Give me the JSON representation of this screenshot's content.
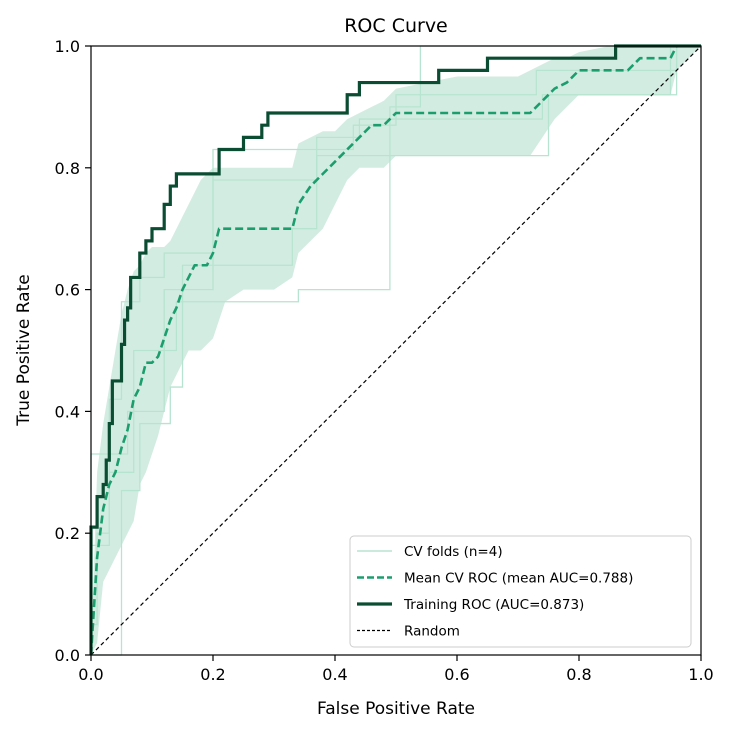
{
  "chart_data": {
    "type": "line",
    "title": "ROC Curve",
    "xlabel": "False Positive Rate",
    "ylabel": "True Positive Rate",
    "xlim": [
      0.0,
      1.0
    ],
    "ylim": [
      0.0,
      1.0
    ],
    "xticks": [
      "0.0",
      "0.2",
      "0.4",
      "0.6",
      "0.8",
      "1.0"
    ],
    "yticks": [
      "0.0",
      "0.2",
      "0.4",
      "0.6",
      "0.8",
      "1.0"
    ],
    "grid": false,
    "legend_position": "lower-right",
    "colors": {
      "folds": "#b7e4d0",
      "band": "#d3ece2",
      "mean": "#1b9e6e",
      "training": "#0b4d33",
      "random": "#000000"
    },
    "series": [
      {
        "name": "CV folds (n=4)",
        "style": "thin",
        "folds": [
          {
            "x": [
              0.0,
              0.0,
              0.01,
              0.01,
              0.03,
              0.03,
              0.05,
              0.05,
              0.08,
              0.08,
              0.12,
              0.12,
              0.2,
              0.2,
              0.34,
              0.34,
              0.43,
              0.43,
              0.5,
              0.5,
              0.73,
              0.73,
              0.96,
              0.96,
              1.0
            ],
            "y": [
              0.0,
              0.05,
              0.05,
              0.2,
              0.2,
              0.42,
              0.42,
              0.58,
              0.58,
              0.62,
              0.62,
              0.66,
              0.66,
              0.83,
              0.83,
              0.83,
              0.83,
              0.87,
              0.87,
              0.92,
              0.92,
              0.96,
              0.96,
              1.0,
              1.0
            ]
          },
          {
            "x": [
              0.0,
              0.05,
              0.05,
              0.08,
              0.08,
              0.13,
              0.13,
              0.15,
              0.15,
              0.2,
              0.2,
              0.34,
              0.34,
              0.37,
              0.37,
              0.44,
              0.44,
              0.74,
              0.74,
              0.95,
              0.95,
              1.0
            ],
            "y": [
              0.0,
              0.0,
              0.27,
              0.27,
              0.38,
              0.38,
              0.44,
              0.44,
              0.6,
              0.6,
              0.78,
              0.78,
              0.78,
              0.78,
              0.85,
              0.85,
              0.88,
              0.88,
              0.92,
              0.92,
              1.0,
              1.0
            ]
          },
          {
            "x": [
              0.0,
              0.0,
              0.03,
              0.03,
              0.07,
              0.07,
              0.12,
              0.12,
              0.15,
              0.15,
              0.2,
              0.2,
              0.33,
              0.33,
              0.37,
              0.37,
              0.53,
              0.53,
              0.75,
              0.75,
              0.96,
              0.96,
              1.0
            ],
            "y": [
              0.0,
              0.18,
              0.18,
              0.3,
              0.3,
              0.5,
              0.5,
              0.6,
              0.6,
              0.64,
              0.64,
              0.64,
              0.64,
              0.7,
              0.7,
              0.82,
              0.82,
              0.82,
              0.82,
              0.92,
              0.92,
              1.0,
              1.0
            ]
          },
          {
            "x": [
              0.0,
              0.0,
              0.02,
              0.02,
              0.06,
              0.06,
              0.12,
              0.12,
              0.14,
              0.14,
              0.2,
              0.2,
              0.34,
              0.34,
              0.49,
              0.49,
              0.54,
              0.54,
              0.55,
              0.55,
              0.73,
              0.73,
              0.96,
              0.96,
              1.0
            ],
            "y": [
              0.0,
              0.33,
              0.33,
              0.33,
              0.33,
              0.4,
              0.4,
              0.5,
              0.5,
              0.58,
              0.58,
              0.58,
              0.58,
              0.6,
              0.6,
              0.9,
              0.9,
              1.0,
              1.0,
              1.0,
              1.0,
              1.0,
              1.0,
              1.0,
              1.0
            ]
          }
        ]
      },
      {
        "name": "Mean CV ROC (mean AUC=0.788)",
        "style": "dashed",
        "x": [
          0.0,
          0.01,
          0.02,
          0.03,
          0.04,
          0.05,
          0.06,
          0.07,
          0.08,
          0.09,
          0.1,
          0.11,
          0.12,
          0.13,
          0.14,
          0.15,
          0.16,
          0.17,
          0.18,
          0.19,
          0.2,
          0.21,
          0.25,
          0.3,
          0.33,
          0.34,
          0.36,
          0.38,
          0.4,
          0.42,
          0.44,
          0.46,
          0.48,
          0.5,
          0.55,
          0.6,
          0.65,
          0.7,
          0.72,
          0.74,
          0.76,
          0.78,
          0.8,
          0.85,
          0.88,
          0.9,
          0.95,
          0.96,
          1.0
        ],
        "y": [
          0.0,
          0.16,
          0.24,
          0.28,
          0.3,
          0.34,
          0.37,
          0.42,
          0.44,
          0.48,
          0.48,
          0.49,
          0.52,
          0.55,
          0.57,
          0.6,
          0.62,
          0.64,
          0.64,
          0.64,
          0.66,
          0.7,
          0.7,
          0.7,
          0.7,
          0.74,
          0.77,
          0.79,
          0.81,
          0.83,
          0.85,
          0.87,
          0.87,
          0.89,
          0.89,
          0.89,
          0.89,
          0.89,
          0.89,
          0.91,
          0.93,
          0.94,
          0.96,
          0.96,
          0.96,
          0.98,
          0.98,
          1.0,
          1.0
        ]
      },
      {
        "name": "Training ROC (AUC=0.873)",
        "style": "solid",
        "x": [
          0.0,
          0.0,
          0.01,
          0.01,
          0.02,
          0.02,
          0.025,
          0.025,
          0.03,
          0.03,
          0.035,
          0.035,
          0.05,
          0.05,
          0.055,
          0.055,
          0.06,
          0.06,
          0.065,
          0.065,
          0.08,
          0.08,
          0.09,
          0.09,
          0.1,
          0.1,
          0.12,
          0.12,
          0.13,
          0.13,
          0.14,
          0.14,
          0.15,
          0.15,
          0.21,
          0.21,
          0.25,
          0.25,
          0.28,
          0.28,
          0.29,
          0.29,
          0.42,
          0.42,
          0.44,
          0.44,
          0.57,
          0.57,
          0.65,
          0.65,
          0.86,
          0.86,
          1.0
        ],
        "y": [
          0.0,
          0.21,
          0.21,
          0.26,
          0.26,
          0.28,
          0.28,
          0.32,
          0.32,
          0.38,
          0.38,
          0.45,
          0.45,
          0.51,
          0.51,
          0.55,
          0.55,
          0.57,
          0.57,
          0.62,
          0.62,
          0.66,
          0.66,
          0.68,
          0.68,
          0.7,
          0.7,
          0.74,
          0.74,
          0.77,
          0.77,
          0.79,
          0.79,
          0.79,
          0.79,
          0.83,
          0.83,
          0.85,
          0.85,
          0.87,
          0.87,
          0.89,
          0.89,
          0.92,
          0.92,
          0.94,
          0.94,
          0.96,
          0.96,
          0.98,
          0.98,
          1.0,
          1.0
        ]
      },
      {
        "name": "Random",
        "style": "dashed-thin",
        "x": [
          0.0,
          1.0
        ],
        "y": [
          0.0,
          1.0
        ]
      }
    ],
    "band": {
      "x": [
        0.0,
        0.01,
        0.02,
        0.03,
        0.04,
        0.05,
        0.06,
        0.07,
        0.08,
        0.09,
        0.1,
        0.11,
        0.12,
        0.13,
        0.14,
        0.15,
        0.16,
        0.18,
        0.2,
        0.22,
        0.25,
        0.3,
        0.33,
        0.34,
        0.36,
        0.38,
        0.4,
        0.42,
        0.44,
        0.46,
        0.48,
        0.5,
        0.55,
        0.6,
        0.65,
        0.7,
        0.72,
        0.74,
        0.76,
        0.78,
        0.8,
        0.85,
        0.9,
        0.95,
        0.96,
        1.0
      ],
      "upper": [
        0.0,
        0.3,
        0.38,
        0.44,
        0.5,
        0.56,
        0.6,
        0.63,
        0.64,
        0.66,
        0.67,
        0.67,
        0.67,
        0.68,
        0.7,
        0.72,
        0.74,
        0.78,
        0.8,
        0.8,
        0.8,
        0.8,
        0.8,
        0.84,
        0.85,
        0.86,
        0.86,
        0.88,
        0.89,
        0.9,
        0.91,
        0.93,
        0.94,
        0.95,
        0.95,
        0.95,
        0.96,
        0.97,
        0.98,
        0.98,
        0.99,
        1.0,
        1.0,
        1.0,
        1.0,
        1.0
      ],
      "lower": [
        0.0,
        0.02,
        0.12,
        0.14,
        0.16,
        0.18,
        0.2,
        0.22,
        0.28,
        0.3,
        0.33,
        0.36,
        0.4,
        0.44,
        0.46,
        0.48,
        0.5,
        0.5,
        0.52,
        0.58,
        0.6,
        0.6,
        0.62,
        0.66,
        0.68,
        0.7,
        0.74,
        0.78,
        0.8,
        0.8,
        0.8,
        0.82,
        0.82,
        0.82,
        0.82,
        0.82,
        0.82,
        0.85,
        0.88,
        0.9,
        0.92,
        0.92,
        0.92,
        0.92,
        0.96,
        1.0
      ]
    }
  }
}
